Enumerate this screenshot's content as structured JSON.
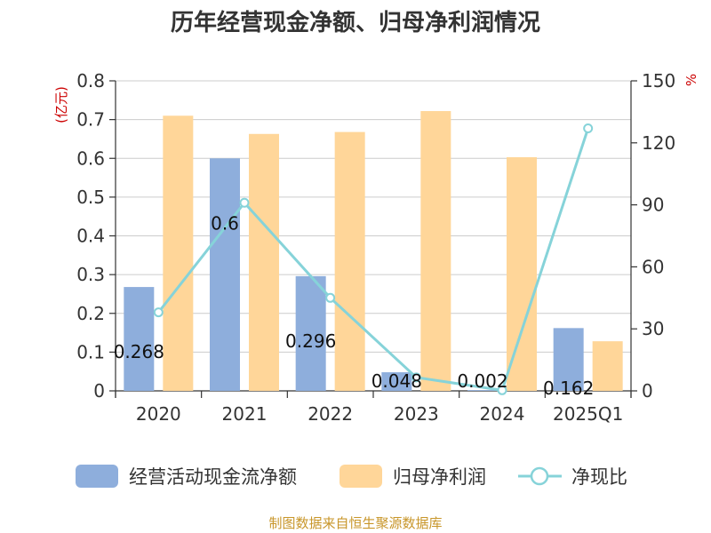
{
  "chart_data": {
    "type": "bar",
    "title": "历年经营现金净额、归母净利润情况",
    "categories": [
      "2020",
      "2021",
      "2022",
      "2023",
      "2024",
      "2025Q1"
    ],
    "left_axis": {
      "unit": "(亿元)",
      "ylim": [
        0,
        0.8
      ],
      "ticks": [
        "0",
        "0.1",
        "0.2",
        "0.3",
        "0.4",
        "0.5",
        "0.6",
        "0.7",
        "0.8"
      ]
    },
    "right_axis": {
      "unit": "%",
      "ylim": [
        0,
        150
      ],
      "ticks": [
        "0",
        "30",
        "60",
        "90",
        "120",
        "150"
      ]
    },
    "series": [
      {
        "name": "经营活动现金流净额",
        "type": "bar",
        "axis": "left",
        "color": "#8eaedc",
        "values": [
          0.268,
          0.6,
          0.296,
          0.048,
          0.002,
          0.162
        ],
        "labels": [
          "0.268",
          "0.6",
          "0.296",
          "0.048",
          "0.002",
          "0.162"
        ]
      },
      {
        "name": "归母净利润",
        "type": "bar",
        "axis": "left",
        "color": "#ffd699",
        "values": [
          0.71,
          0.663,
          0.668,
          0.722,
          0.603,
          0.128
        ]
      },
      {
        "name": "净现比",
        "type": "line",
        "axis": "right",
        "color": "#86d3d9",
        "values": [
          38,
          91,
          45,
          6.5,
          0.3,
          127
        ]
      }
    ],
    "grid": true,
    "legend_position": "bottom"
  },
  "source_text": "制图数据来自恒生聚源数据库"
}
